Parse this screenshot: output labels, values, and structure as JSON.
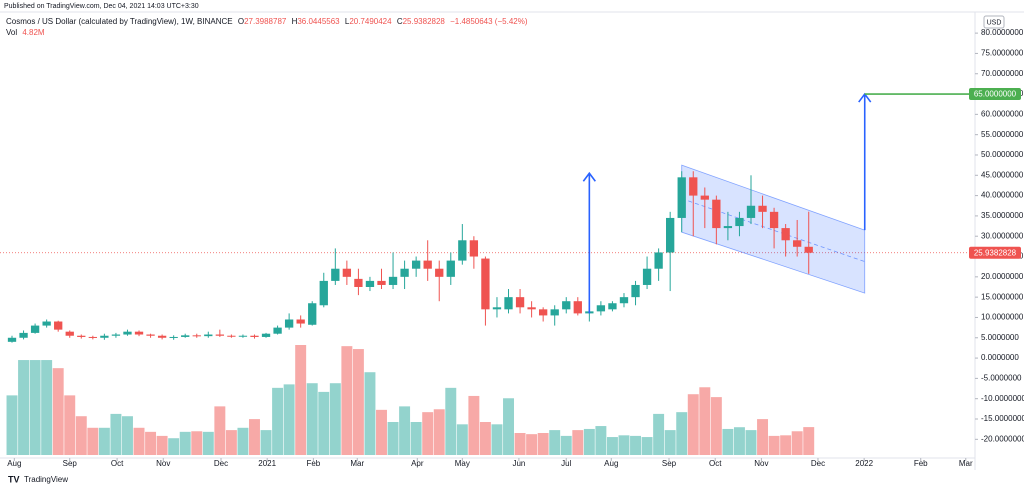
{
  "published": "Published on TradingView.com, Dec 04, 2021 14:03 UTC+3:30",
  "brand": "TradingView",
  "chart_data": {
    "type": "candlestick",
    "title": "Cosmos / US Dollar (calculated by TradingView), 1W, BINANCE",
    "ohlc_letters": [
      "O",
      "H",
      "L",
      "C"
    ],
    "change_label": "−1.4850643 (−5.42%)",
    "volume_name": "Vol",
    "volume_label": "4.82M",
    "currency": "USD",
    "up_color": "#26a69a",
    "down_color": "#ef5350",
    "volume_up_color": "#93d3cd",
    "volume_down_color": "#f7a9a7",
    "candles": [
      {
        "open": 4,
        "high": 5.5,
        "low": 3.8,
        "close": 5
      },
      {
        "open": 5,
        "high": 6.8,
        "low": 4.6,
        "close": 6.2
      },
      {
        "open": 6.2,
        "high": 8.5,
        "low": 6,
        "close": 8
      },
      {
        "open": 8,
        "high": 9.5,
        "low": 7.5,
        "close": 9
      },
      {
        "open": 9,
        "high": 9.2,
        "low": 6.5,
        "close": 7
      },
      {
        "open": 6.5,
        "high": 6.8,
        "low": 5,
        "close": 5.5
      },
      {
        "open": 5.5,
        "high": 5.8,
        "low": 4.8,
        "close": 5.2
      },
      {
        "open": 5.2,
        "high": 5.5,
        "low": 4.6,
        "close": 5
      },
      {
        "open": 5,
        "high": 6,
        "low": 4.5,
        "close": 5.5
      },
      {
        "open": 5.5,
        "high": 6.2,
        "low": 5,
        "close": 5.8
      },
      {
        "open": 5.8,
        "high": 7,
        "low": 5.5,
        "close": 6.5
      },
      {
        "open": 6.5,
        "high": 6.8,
        "low": 5.4,
        "close": 5.8
      },
      {
        "open": 5.8,
        "high": 6,
        "low": 5,
        "close": 5.5
      },
      {
        "open": 5.5,
        "high": 5.8,
        "low": 4.6,
        "close": 5
      },
      {
        "open": 5,
        "high": 5.6,
        "low": 4.5,
        "close": 5.2
      },
      {
        "open": 5.2,
        "high": 6,
        "low": 5,
        "close": 5.6
      },
      {
        "open": 5.6,
        "high": 6,
        "low": 5,
        "close": 5.4
      },
      {
        "open": 5.4,
        "high": 6.5,
        "low": 5,
        "close": 5.8
      },
      {
        "open": 5.8,
        "high": 7,
        "low": 5.2,
        "close": 5.5
      },
      {
        "open": 5.5,
        "high": 5.8,
        "low": 5,
        "close": 5.3
      },
      {
        "open": 5.3,
        "high": 5.8,
        "low": 5,
        "close": 5.5
      },
      {
        "open": 5.5,
        "high": 5.8,
        "low": 4.8,
        "close": 5.2
      },
      {
        "open": 5.2,
        "high": 6.2,
        "low": 5,
        "close": 6
      },
      {
        "open": 6,
        "high": 8,
        "low": 5.8,
        "close": 7.5
      },
      {
        "open": 7.5,
        "high": 11,
        "low": 7,
        "close": 9.5
      },
      {
        "open": 9.5,
        "high": 10.5,
        "low": 7.5,
        "close": 8.5
      },
      {
        "open": 8.2,
        "high": 14,
        "low": 8,
        "close": 13.5
      },
      {
        "open": 13,
        "high": 21,
        "low": 12.5,
        "close": 19
      },
      {
        "open": 19,
        "high": 27,
        "low": 18,
        "close": 22
      },
      {
        "open": 22,
        "high": 24,
        "low": 18,
        "close": 20
      },
      {
        "open": 19.5,
        "high": 22,
        "low": 15.5,
        "close": 17.5
      },
      {
        "open": 17.5,
        "high": 20,
        "low": 16.5,
        "close": 19
      },
      {
        "open": 19,
        "high": 22,
        "low": 17,
        "close": 18
      },
      {
        "open": 18,
        "high": 26,
        "low": 17,
        "close": 20
      },
      {
        "open": 20,
        "high": 24,
        "low": 17,
        "close": 22
      },
      {
        "open": 22,
        "high": 25,
        "low": 20,
        "close": 24
      },
      {
        "open": 24,
        "high": 29,
        "low": 19,
        "close": 22
      },
      {
        "open": 22,
        "high": 24,
        "low": 14,
        "close": 20
      },
      {
        "open": 20,
        "high": 26,
        "low": 18,
        "close": 24
      },
      {
        "open": 24,
        "high": 33,
        "low": 23,
        "close": 29
      },
      {
        "open": 29,
        "high": 30,
        "low": 22,
        "close": 25
      },
      {
        "open": 24.5,
        "high": 25,
        "low": 8,
        "close": 12
      },
      {
        "open": 12,
        "high": 15,
        "low": 10,
        "close": 12.5
      },
      {
        "open": 12,
        "high": 17,
        "low": 11,
        "close": 15
      },
      {
        "open": 15,
        "high": 17,
        "low": 11,
        "close": 12.5
      },
      {
        "open": 12.5,
        "high": 14,
        "low": 10,
        "close": 12
      },
      {
        "open": 12,
        "high": 12.5,
        "low": 9,
        "close": 10.5
      },
      {
        "open": 10.5,
        "high": 13,
        "low": 8,
        "close": 12
      },
      {
        "open": 12,
        "high": 15,
        "low": 11,
        "close": 14
      },
      {
        "open": 14,
        "high": 15,
        "low": 10.5,
        "close": 11
      },
      {
        "open": 11,
        "high": 12,
        "low": 9,
        "close": 11.5
      },
      {
        "open": 11.5,
        "high": 14,
        "low": 10.5,
        "close": 13
      },
      {
        "open": 12,
        "high": 14,
        "low": 11.5,
        "close": 13.5
      },
      {
        "open": 13.5,
        "high": 16,
        "low": 12.5,
        "close": 15
      },
      {
        "open": 15,
        "high": 19,
        "low": 13,
        "close": 18
      },
      {
        "open": 18,
        "high": 25,
        "low": 17,
        "close": 22
      },
      {
        "open": 22,
        "high": 27,
        "low": 19,
        "close": 26
      },
      {
        "open": 26,
        "high": 36,
        "low": 16.5,
        "close": 34.5
      },
      {
        "open": 34.5,
        "high": 46,
        "low": 31,
        "close": 44.5
      },
      {
        "open": 44.5,
        "high": 46,
        "low": 30,
        "close": 40
      },
      {
        "open": 40,
        "high": 42,
        "low": 32,
        "close": 39
      },
      {
        "open": 39,
        "high": 40,
        "low": 28,
        "close": 32
      },
      {
        "open": 32,
        "high": 36,
        "low": 29,
        "close": 32.5
      },
      {
        "open": 32.5,
        "high": 36,
        "low": 30,
        "close": 34.5
      },
      {
        "open": 34.5,
        "high": 45,
        "low": 33,
        "close": 37.5
      },
      {
        "open": 37.5,
        "high": 40,
        "low": 32,
        "close": 36
      },
      {
        "open": 36,
        "high": 37,
        "low": 27,
        "close": 32
      },
      {
        "open": 32,
        "high": 33,
        "low": 25,
        "close": 29
      },
      {
        "open": 29,
        "high": 34,
        "low": 25,
        "close": 27.4
      },
      {
        "open": 27.3988787,
        "high": 36.0445563,
        "low": 20.7490424,
        "close": 25.9382828
      }
    ],
    "volume": [
      10.3,
      16.4,
      16.4,
      16.4,
      15,
      10.3,
      6.7,
      4.7,
      4.7,
      7.1,
      6.7,
      4.7,
      4,
      3.3,
      2.9,
      4,
      4.1,
      4,
      8.4,
      4.3,
      4.7,
      6.2,
      4.3,
      11.6,
      12.2,
      19,
      12.4,
      10.9,
      12.4,
      18.8,
      18.3,
      14.3,
      7.8,
      5.7,
      8.4,
      5.7,
      7.4,
      7.9,
      11.6,
      5.3,
      10.2,
      5.7,
      5.3,
      9.8,
      3.8,
      3.6,
      3.8,
      4.3,
      3.3,
      4.3,
      4.5,
      5,
      3.1,
      3.4,
      3.3,
      3.1,
      7.1,
      4.3,
      7.4,
      10.5,
      11.7,
      10,
      4.5,
      4.8,
      4.3,
      6.2,
      3.3,
      3.4,
      4.1,
      4.82
    ],
    "xlim": [
      -1.04,
      83.4
    ],
    "xticks": [
      {
        "value": 0.2,
        "label": "Aug"
      },
      {
        "value": 5,
        "label": "Sep"
      },
      {
        "value": 9.1,
        "label": "Oct"
      },
      {
        "value": 13.1,
        "label": "Nov"
      },
      {
        "value": 18.1,
        "label": "Dec"
      },
      {
        "value": 22.1,
        "label": "2021"
      },
      {
        "value": 26.1,
        "label": "Feb"
      },
      {
        "value": 29.9,
        "label": "Mar"
      },
      {
        "value": 35.1,
        "label": "Apr"
      },
      {
        "value": 39,
        "label": "May"
      },
      {
        "value": 43.9,
        "label": "Jun"
      },
      {
        "value": 48,
        "label": "Jul"
      },
      {
        "value": 51.9,
        "label": "Aug"
      },
      {
        "value": 56.9,
        "label": "Sep"
      },
      {
        "value": 60.9,
        "label": "Oct"
      },
      {
        "value": 64.9,
        "label": "Nov"
      },
      {
        "value": 69.8,
        "label": "Dec"
      },
      {
        "value": 73.8,
        "label": "2022"
      },
      {
        "value": 78.7,
        "label": "Feb"
      },
      {
        "value": 82.6,
        "label": "Mar"
      }
    ],
    "ylim": [
      -24.6,
      85.2
    ],
    "yticks": [
      {
        "value": 80,
        "label": "80.0000000"
      },
      {
        "value": 75,
        "label": "75.0000000"
      },
      {
        "value": 70,
        "label": "70.0000000"
      },
      {
        "value": 65,
        "label": "65.0000000"
      },
      {
        "value": 60,
        "label": "60.0000000"
      },
      {
        "value": 55,
        "label": "55.0000000"
      },
      {
        "value": 50,
        "label": "50.0000000"
      },
      {
        "value": 45,
        "label": "45.0000000"
      },
      {
        "value": 40,
        "label": "40.0000000"
      },
      {
        "value": 35,
        "label": "35.0000000"
      },
      {
        "value": 30,
        "label": "30.0000000"
      },
      {
        "value": 25,
        "label": "25.0000000"
      },
      {
        "value": 20,
        "label": "20.0000000"
      },
      {
        "value": 15,
        "label": "15.0000000"
      },
      {
        "value": 10,
        "label": "10.0000000"
      },
      {
        "value": 5,
        "label": "5.0000000"
      },
      {
        "value": 0,
        "label": "0.0000000"
      },
      {
        "value": -5,
        "label": "-5.0000000"
      },
      {
        "value": -10,
        "label": "-10.0000000"
      },
      {
        "value": -15,
        "label": "-15.0000000"
      },
      {
        "value": -20,
        "label": "-20.0000000"
      }
    ],
    "grid": false,
    "price_line": {
      "value": 25.9382828,
      "label": "25.9382828",
      "color": "#ef5350"
    },
    "level": {
      "value": 65,
      "label": "65.0000000",
      "color": "#4caf50",
      "x": 73.85
    },
    "channel": {
      "color": "#2962ff",
      "upper": [
        [
          58,
          47.5
        ],
        [
          73.85,
          31.5
        ]
      ],
      "lower": [
        [
          58,
          31
        ],
        [
          73.85,
          16
        ]
      ]
    },
    "arrows": [
      {
        "x": 50,
        "from": 11,
        "to": 45.5,
        "color": "#2962ff"
      },
      {
        "x": 73.85,
        "from": 31.5,
        "to": 65,
        "color": "#2962ff"
      }
    ]
  }
}
